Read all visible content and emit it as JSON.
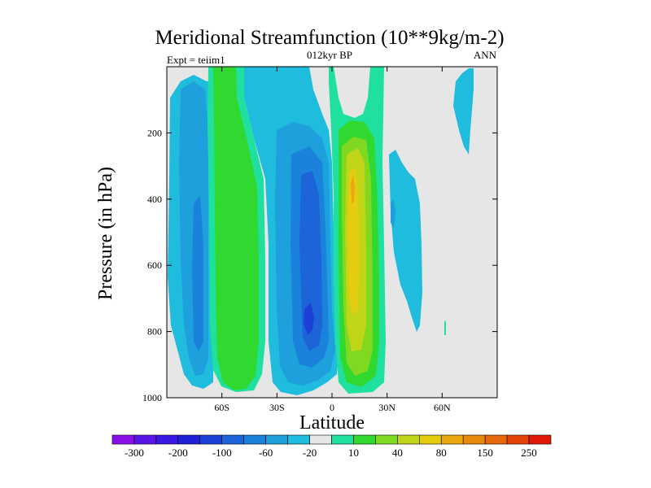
{
  "chart_data": {
    "type": "heatmap",
    "title": "Meridional Streamfunction (10**9kg/m-2)",
    "subtitle": "012kyr BP",
    "left_label": "Expt = teiim1",
    "right_label": "ANN",
    "xlabel": "Latitude",
    "ylabel": "Pressure (in hPa)",
    "xlim": [
      -90,
      90
    ],
    "ylim": [
      1000,
      0
    ],
    "x_ticks": [
      {
        "value": -60,
        "label": "60S"
      },
      {
        "value": -30,
        "label": "30S"
      },
      {
        "value": 0,
        "label": "0"
      },
      {
        "value": 30,
        "label": "30N"
      },
      {
        "value": 60,
        "label": "60N"
      }
    ],
    "y_ticks": [
      {
        "value": 200,
        "label": "200"
      },
      {
        "value": 400,
        "label": "400"
      },
      {
        "value": 600,
        "label": "600"
      },
      {
        "value": 800,
        "label": "800"
      },
      {
        "value": 1000,
        "label": "1000"
      }
    ],
    "background_color": "#e6e6e6",
    "colorbar": {
      "colors": [
        "#8a10e8",
        "#5a14e6",
        "#3a18e2",
        "#2020d8",
        "#1e40d6",
        "#1c64d8",
        "#1a82da",
        "#1ea0dc",
        "#20bcde",
        "#e6e6e6",
        "#20e0a0",
        "#30d830",
        "#80d820",
        "#c0d418",
        "#e4cc10",
        "#e8a80e",
        "#e8880c",
        "#e6680a",
        "#e44408",
        "#e01806"
      ],
      "labels": [
        "-300",
        "-200",
        "-100",
        "-60",
        "-20",
        "10",
        "40",
        "80",
        "150",
        "250"
      ]
    },
    "features": [
      {
        "name": "southern polar negative cell",
        "lat_range": [
          -86,
          -62
        ],
        "pressure_range": [
          60,
          980
        ],
        "sign": "negative",
        "peak_value": -40,
        "peak_lat": -71,
        "peak_pressure": 500
      },
      {
        "name": "southern mid-latitude positive cell",
        "lat_range": [
          -60,
          -37
        ],
        "pressure_range": [
          0,
          980
        ],
        "sign": "positive",
        "peak_value": 20,
        "peak_lat": -50,
        "peak_pressure": 600
      },
      {
        "name": "southern hadley negative cell",
        "lat_range": [
          -32,
          2
        ],
        "pressure_range": [
          140,
          980
        ],
        "sign": "negative",
        "peak_value": -100,
        "peak_lat": -11,
        "peak_pressure": 770
      },
      {
        "name": "northern hadley positive cell",
        "lat_range": [
          6,
          26
        ],
        "pressure_range": [
          0,
          990
        ],
        "sign": "positive",
        "peak_value": 80,
        "peak_lat": 12,
        "peak_pressure": 360
      },
      {
        "name": "northern mid-latitude negative cell",
        "lat_range": [
          31,
          48
        ],
        "pressure_range": [
          200,
          800
        ],
        "sign": "negative",
        "peak_value": -20,
        "peak_lat": 36,
        "peak_pressure": 460
      },
      {
        "name": "northern polar negative band",
        "lat_range": [
          68,
          80
        ],
        "pressure_range": [
          0,
          370
        ],
        "sign": "negative",
        "peak_value": -10,
        "peak_lat": 75,
        "peak_pressure": 150
      }
    ]
  }
}
